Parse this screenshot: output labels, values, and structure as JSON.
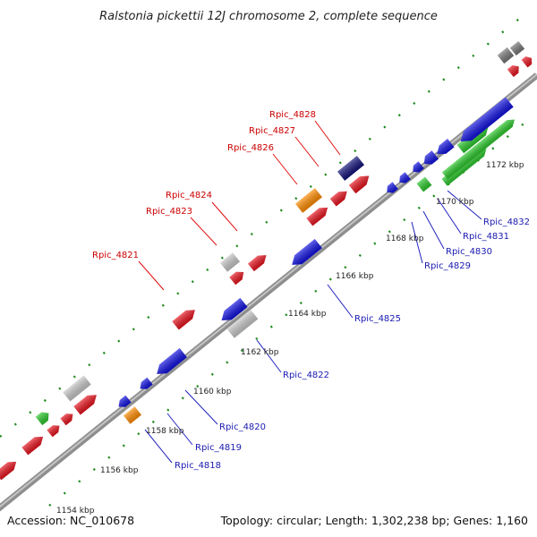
{
  "title": "Ralstonia pickettii 12J chromosome 2, complete sequence",
  "accession": "Accession: NC_010678",
  "summary": "Topology: circular; Length: 1,302,238 bp; Genes: 1,160",
  "ticks": [
    "1154 kbp",
    "1156 kbp",
    "1158 kbp",
    "1160 kbp",
    "1162 kbp",
    "1164 kbp",
    "1166 kbp",
    "1168 kbp",
    "1170 kbp",
    "1172 kbp"
  ],
  "labels_top": [
    "Rpic_4821",
    "Rpic_4823",
    "Rpic_4824",
    "Rpic_4826",
    "Rpic_4827",
    "Rpic_4828"
  ],
  "labels_bottom": [
    "Rpic_4818",
    "Rpic_4819",
    "Rpic_4820",
    "Rpic_4822",
    "Rpic_4825",
    "Rpic_4829",
    "Rpic_4830",
    "Rpic_4831",
    "Rpic_4832"
  ],
  "colors": {
    "red": "#e8141e",
    "blue": "#1010e0",
    "gray": "#c8c8c8",
    "darkgray": "#777777",
    "green": "#2cc82c",
    "orange": "#ff8c00",
    "navy": "#12127a",
    "backbone": "#999999",
    "dots": "#1f8a1f"
  }
}
